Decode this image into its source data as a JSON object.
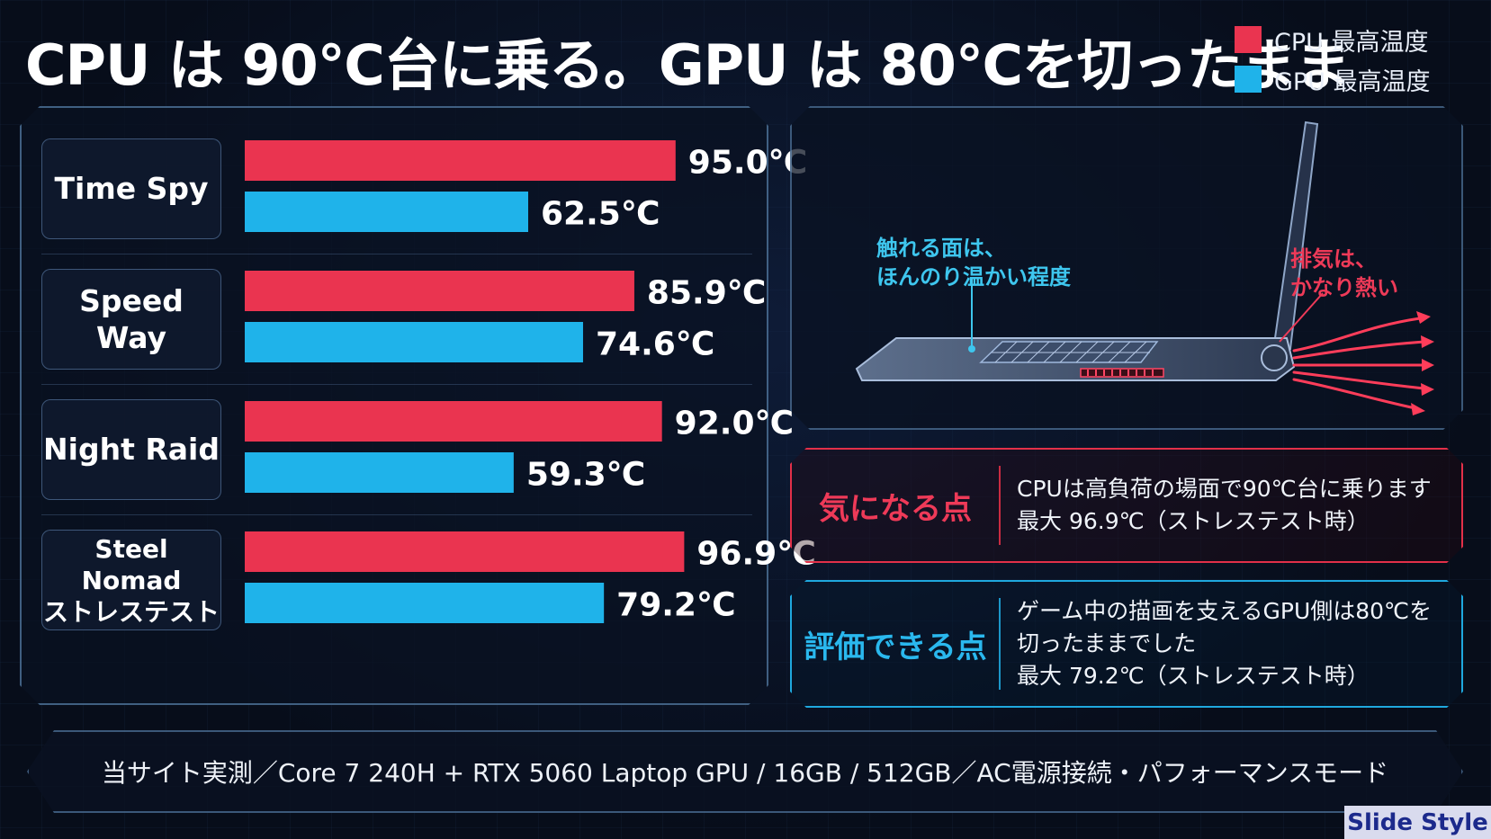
{
  "title": "CPU は 90℃台に乗る。GPU は 80℃を切ったまま",
  "legend": {
    "cpu_label": "CPU 最高温度",
    "gpu_label": "GPU 最高温度",
    "cpu_color": "#ea3450",
    "gpu_color": "#1fb3ea"
  },
  "chart_data": {
    "type": "bar",
    "orientation": "horizontal",
    "categories": [
      "Time Spy",
      "Speed Way",
      "Night Raid",
      "Steel Nomad\nストレステスト"
    ],
    "series": [
      {
        "name": "CPU 最高温度",
        "values": [
          95.0,
          85.9,
          92.0,
          96.9
        ],
        "labels": [
          "95.0℃",
          "85.9℃",
          "92.0℃",
          "96.9℃"
        ]
      },
      {
        "name": "GPU 最高温度",
        "values": [
          62.5,
          74.6,
          59.3,
          79.2
        ],
        "labels": [
          "62.5℃",
          "74.6℃",
          "59.3℃",
          "79.2℃"
        ]
      }
    ],
    "legend_position": "top-right",
    "grid": false
  },
  "illustration": {
    "touch_note": "触れる面は、\nほんのり温かい程度",
    "exhaust_note": "排気は、\nかなり熱い",
    "laptop_icon": "laptop-side-view-icon",
    "airflow_icon": "exhaust-arrows-icon"
  },
  "concern": {
    "heading": "気になる点",
    "line1": "CPUは高負荷の場面で90℃台に乗ります",
    "line2": "最大 96.9℃（ストレステスト時）"
  },
  "merit": {
    "heading": "評価できる点",
    "line1": "ゲーム中の描画を支えるGPU側は80℃を",
    "line2": "切ったままでした",
    "line3": "最大 79.2℃（ストレステスト時）"
  },
  "footer": "当サイト実測／Core 7 240H + RTX 5060 Laptop GPU / 16GB / 512GB／AC電源接続・パフォーマンスモード",
  "watermark": "Slide Style"
}
